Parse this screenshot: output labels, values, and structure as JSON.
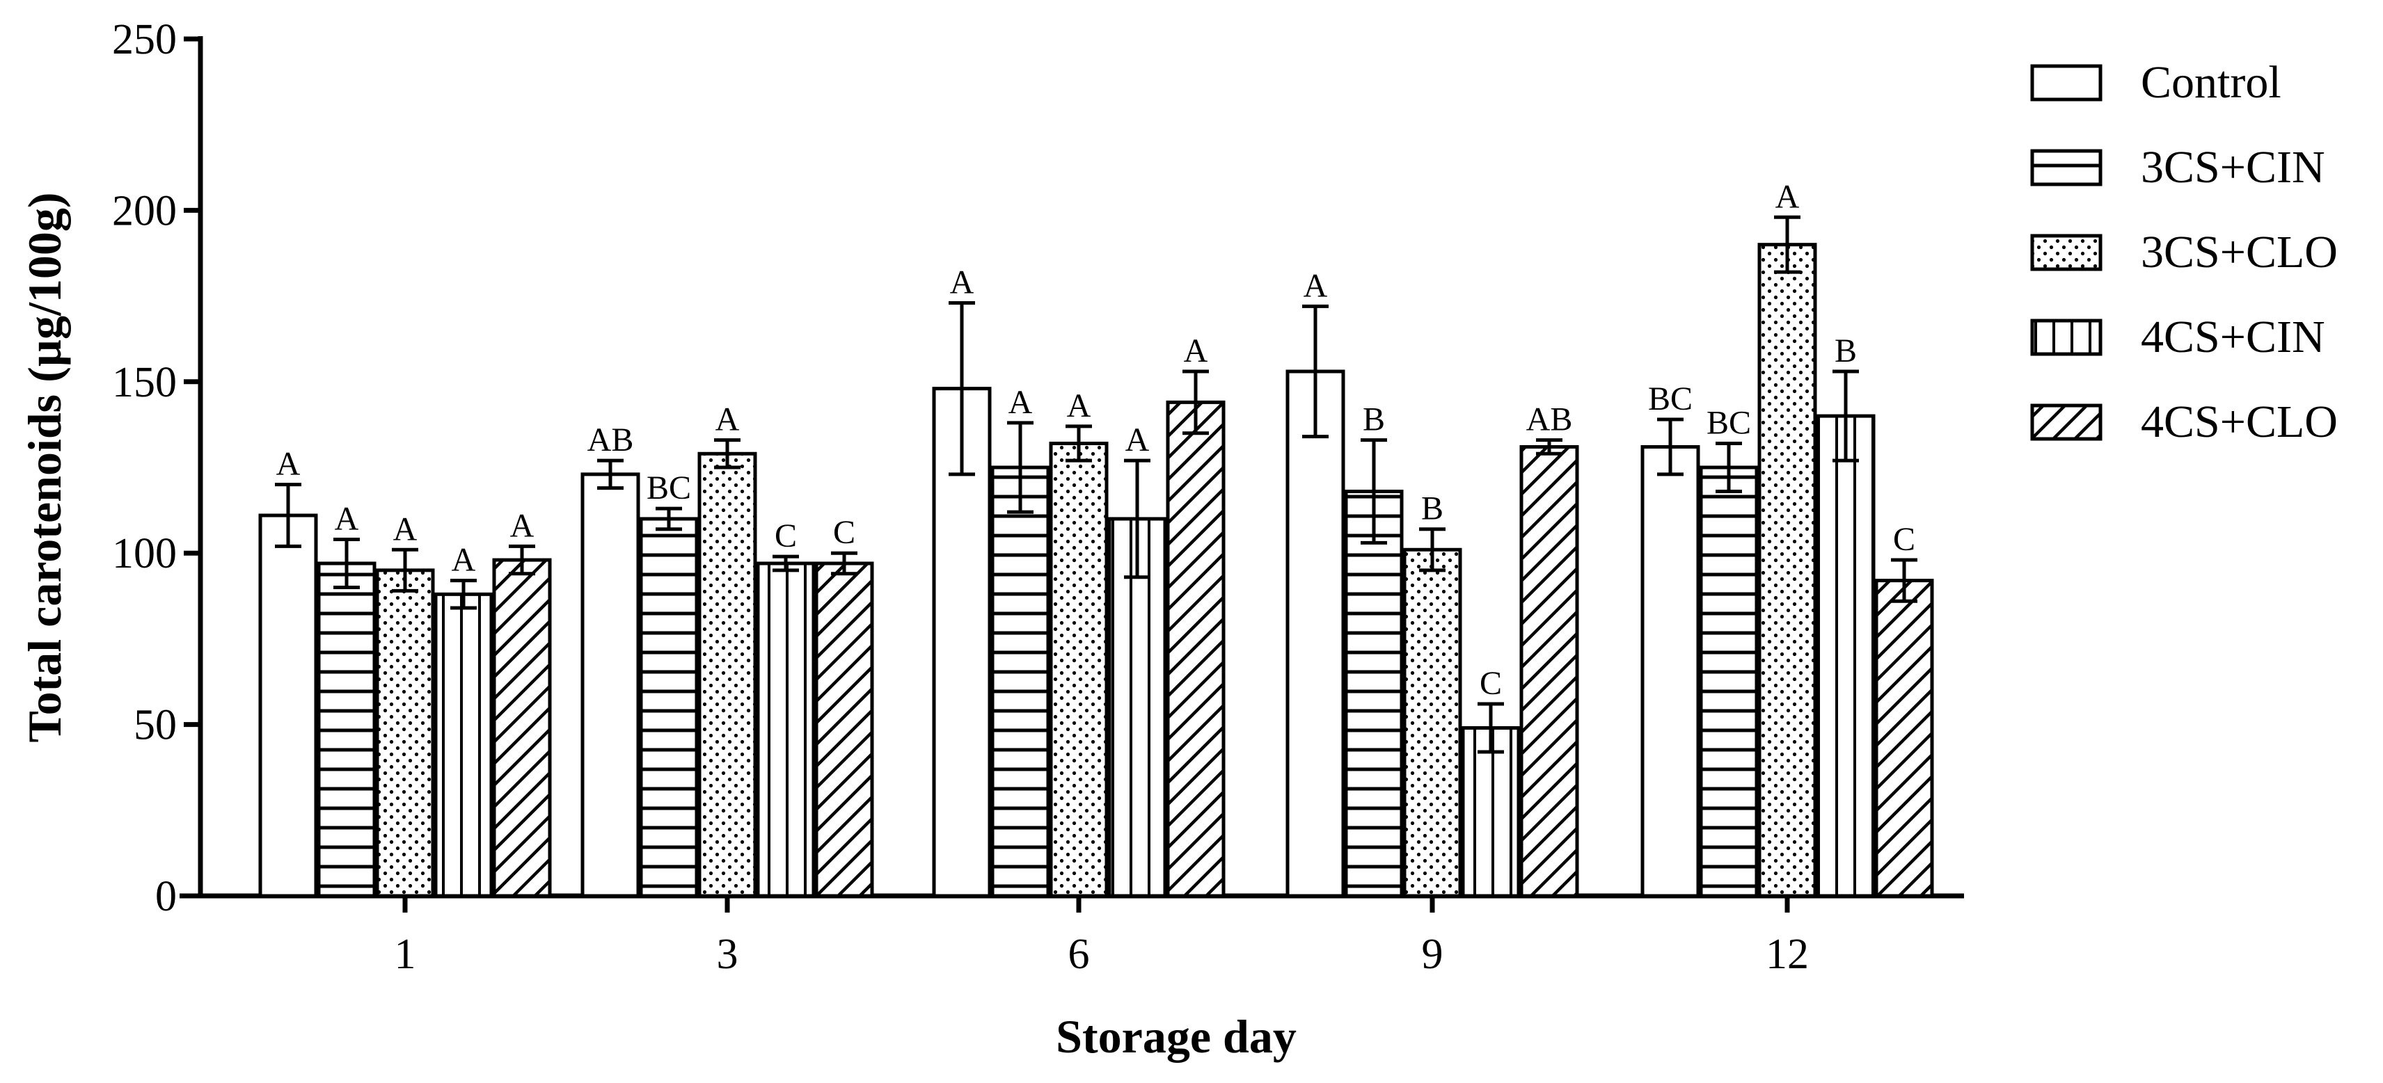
{
  "chart_data": {
    "type": "bar",
    "title": "",
    "xlabel": "Storage day",
    "ylabel": "Total carotenoids (µg/100g)",
    "ylim": [
      0,
      250
    ],
    "yticks": [
      0,
      50,
      100,
      150,
      200,
      250
    ],
    "categories": [
      "1",
      "3",
      "6",
      "9",
      "12"
    ],
    "legend_position": "top-right",
    "series": [
      {
        "name": "Control",
        "pattern": "open",
        "values": [
          111,
          123,
          148,
          153,
          131
        ],
        "errors": [
          9,
          4,
          25,
          19,
          8
        ],
        "letters": [
          "A",
          "AB",
          "A",
          "A",
          "BC"
        ]
      },
      {
        "name": "3CS+CIN",
        "pattern": "horizontal",
        "values": [
          97,
          110,
          125,
          118,
          125
        ],
        "errors": [
          7,
          3,
          13,
          15,
          7
        ],
        "letters": [
          "A",
          "BC",
          "A",
          "B",
          "BC"
        ]
      },
      {
        "name": "3CS+CLO",
        "pattern": "dotted",
        "values": [
          95,
          129,
          132,
          101,
          190
        ],
        "errors": [
          6,
          4,
          5,
          6,
          8
        ],
        "letters": [
          "A",
          "A",
          "A",
          "B",
          "A"
        ]
      },
      {
        "name": "4CS+CIN",
        "pattern": "vertical",
        "values": [
          88,
          97,
          110,
          49,
          140
        ],
        "errors": [
          4,
          2,
          17,
          7,
          13
        ],
        "letters": [
          "A",
          "C",
          "A",
          "C",
          "B"
        ]
      },
      {
        "name": "4CS+CLO",
        "pattern": "diagonal",
        "values": [
          98,
          97,
          144,
          131,
          92
        ],
        "errors": [
          4,
          3,
          9,
          2,
          6
        ],
        "letters": [
          "A",
          "C",
          "A",
          "AB",
          "C"
        ]
      }
    ]
  }
}
